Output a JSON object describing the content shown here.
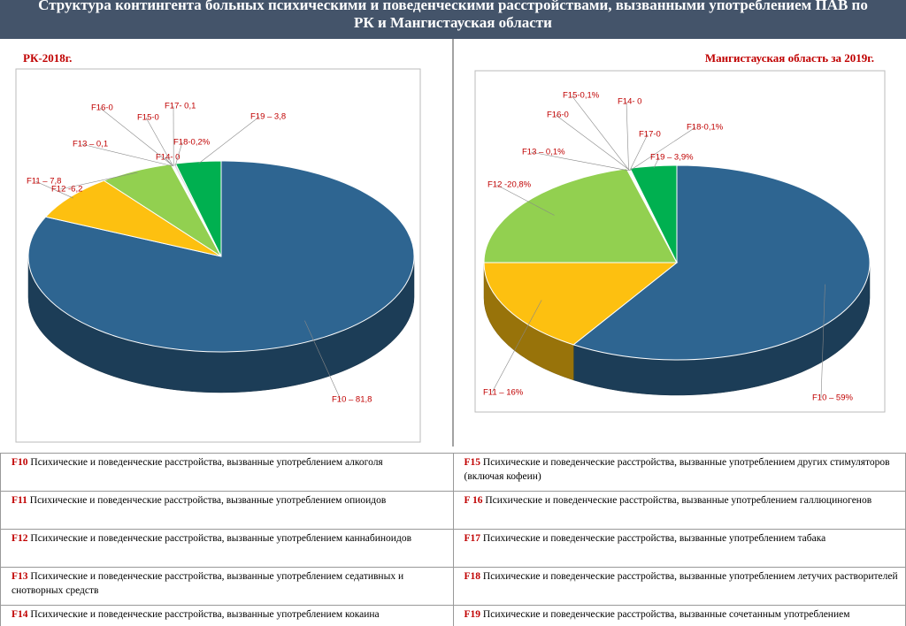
{
  "title": "Структура контингента больных психическими и поведенческими расстройствами, вызванными употреблением ПАВ по РК и Мангистауская области",
  "chart_data": [
    {
      "type": "pie",
      "title": "РК-2018г.",
      "values": [
        81.8,
        7.8,
        6.2,
        0.1,
        0,
        0,
        0,
        0.1,
        0.2,
        3.8
      ],
      "value_labels": [
        "F10 – 81,8",
        "F11 – 7,8",
        "F12 -6,2",
        "F13 – 0,1",
        "F14- 0",
        "F15-0",
        "F16-0",
        "F17- 0,1",
        "F18-0,2%",
        "F19 – 3,8"
      ],
      "colors": [
        "#2e6591",
        "#fdc010",
        "#92d050",
        "#d9d9d9",
        "#d9d9d9",
        "#d9d9d9",
        "#d9d9d9",
        "#d9d9d9",
        "#d9d9d9",
        "#00b050"
      ]
    },
    {
      "type": "pie",
      "title": "Мангистауская область за 2019г.",
      "values": [
        59,
        16,
        20.8,
        0.1,
        0,
        0.1,
        0,
        0,
        0.1,
        3.9
      ],
      "value_labels": [
        "F10 – 59%",
        "F11 – 16%",
        "F12 -20,8%",
        "F13 – 0,1%",
        "F14- 0",
        "F15-0,1%",
        "F16-0",
        "F17-0",
        "F18-0,1%",
        "F19 – 3,9%"
      ],
      "colors": [
        "#2e6591",
        "#fdc010",
        "#92d050",
        "#d9d9d9",
        "#d9d9d9",
        "#d9d9d9",
        "#d9d9d9",
        "#d9d9d9",
        "#d9d9d9",
        "#00b050"
      ]
    }
  ],
  "table": {
    "rows": [
      [
        {
          "code": "F10",
          "text": "Психические и поведенческие расстройства, вызванные  употреблением алкоголя"
        },
        {
          "code": "F15",
          "text": "Психические и поведенческие расстройства, вызванные употреблением других стимуляторов  (включая кофеин)"
        }
      ],
      [
        {
          "code": "F11",
          "text": "Психические и поведенческие расстройства, вызванные употреблением опиоидов"
        },
        {
          "code": "F 16",
          "text": "Психические и поведенческие расстройства, вызванные употреблением галлюциногенов"
        }
      ],
      [
        {
          "code": "F12",
          "text": "Психические и поведенческие расстройства, вызванные употреблением каннабиноидов"
        },
        {
          "code": "F17",
          "text": "Психические и поведенческие расстройства, вызванные употреблением табака"
        }
      ],
      [
        {
          "code": "F13",
          "text": "Психические и поведенческие расстройства, вызванные употреблением седативных и снотворных средств"
        },
        {
          "code": "F18",
          "text": "Психические и поведенческие расстройства, вызванные употреблением летучих растворителей"
        }
      ],
      [
        {
          "code": "F14",
          "text": "Психические и поведенческие расстройства, вызванные употреблением кокаина"
        },
        {
          "code": "F19",
          "text": "Психические и поведенческие расстройства, вызванные  сочетанным употреблением наркотиков"
        }
      ]
    ]
  }
}
